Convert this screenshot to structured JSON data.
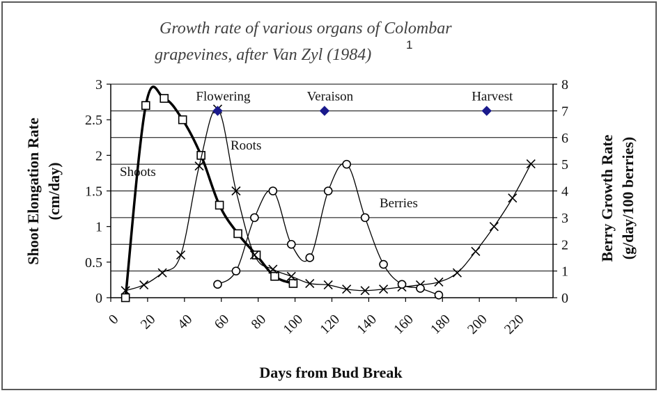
{
  "chart_data": {
    "type": "line",
    "title": "Growth rate of various organs of Colombar grapevines, after Van Zyl (1984)",
    "title_lines": [
      "Growth rate of various organs of Colombar",
      "grapevines, after Van Zyl (1984)"
    ],
    "title_superscript": "1",
    "xlabel": "Days from Bud Break",
    "ylabel_left": [
      "Shoot Elongation Rate",
      "(cm/day)"
    ],
    "ylabel_right": [
      "Berry Growth Rate",
      "(g/day/100 berries)"
    ],
    "xlim": [
      0,
      240
    ],
    "ylim_left": [
      0,
      3
    ],
    "ylim_right": [
      0,
      8
    ],
    "xticks": [
      "0",
      "20",
      "40",
      "60",
      "80",
      "100",
      "120",
      "140",
      "160",
      "180",
      "200",
      "220"
    ],
    "xtick_values": [
      0,
      20,
      40,
      60,
      80,
      100,
      120,
      140,
      160,
      180,
      200,
      220
    ],
    "yticks_left": [
      "0",
      "0.5",
      "1",
      "1.5",
      "2",
      "2.5",
      "3"
    ],
    "ytick_values_left": [
      0,
      0.5,
      1,
      1.5,
      2,
      2.5,
      3
    ],
    "yticks_right": [
      "0",
      "1",
      "2",
      "3",
      "4",
      "5",
      "6",
      "7",
      "8"
    ],
    "ytick_values_right": [
      0,
      1,
      2,
      3,
      4,
      5,
      6,
      7,
      8
    ],
    "grid": true,
    "series": [
      {
        "name": "Shoots",
        "axis": "left",
        "marker": "square",
        "x": [
          8,
          19,
          29,
          39,
          49,
          59,
          69,
          79,
          89,
          99
        ],
        "y": [
          0.0,
          2.7,
          2.8,
          2.5,
          2.0,
          1.3,
          0.9,
          0.6,
          0.3,
          0.2
        ]
      },
      {
        "name": "Roots",
        "axis": "left",
        "marker": "cross",
        "x": [
          8,
          18,
          28,
          38,
          48,
          58,
          68,
          78,
          88,
          98,
          108,
          118,
          128,
          138,
          148,
          158,
          168,
          178,
          188,
          198,
          208,
          218,
          228
        ],
        "y": [
          0.1,
          0.18,
          0.35,
          0.6,
          1.85,
          2.65,
          1.5,
          0.6,
          0.4,
          0.3,
          0.2,
          0.18,
          0.12,
          0.1,
          0.12,
          0.15,
          0.18,
          0.22,
          0.35,
          0.65,
          1.0,
          1.4,
          1.88
        ]
      },
      {
        "name": "Berries",
        "axis": "right",
        "marker": "circle",
        "x": [
          58,
          68,
          78,
          88,
          98,
          108,
          118,
          128,
          138,
          148,
          158,
          168,
          178
        ],
        "y": [
          0.5,
          1.0,
          3.0,
          4.0,
          2.0,
          1.5,
          4.0,
          5.0,
          3.0,
          1.25,
          0.5,
          0.35,
          0.1
        ]
      }
    ],
    "stage_markers": [
      {
        "label": "Flowering",
        "x": 58,
        "y_right": 7.0
      },
      {
        "label": "Veraison",
        "x": 116,
        "y_right": 7.0
      },
      {
        "label": "Harvest",
        "x": 204,
        "y_right": 7.0
      }
    ],
    "colors": {
      "line": "#000000",
      "marker_fill": "#ffffff",
      "stage_marker": "#1a1a8c",
      "grid": "#000000"
    }
  }
}
